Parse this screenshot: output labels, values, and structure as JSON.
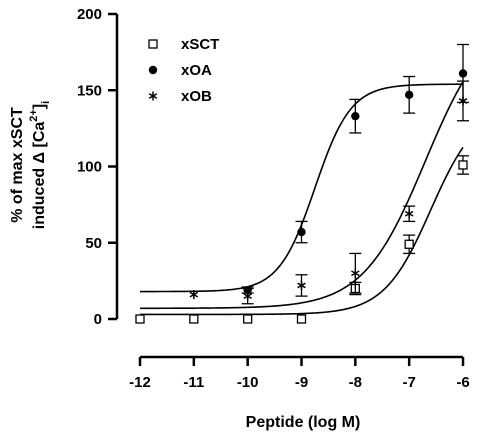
{
  "chart_data": {
    "type": "scatter",
    "title": "",
    "xlabel": "Peptide (log M)",
    "ylabel_line1": "% of max xSCT",
    "ylabel_line2_prefix": "induced Δ  [Ca",
    "ylabel_sup": "2+",
    "ylabel_close": "]",
    "ylabel_sub": "i",
    "xlim": [
      -12,
      -6
    ],
    "ylim": [
      0,
      200
    ],
    "x_ticks": [
      -12,
      -11,
      -10,
      -9,
      -8,
      -7,
      -6
    ],
    "x_tick_labels": [
      "-12",
      "-11",
      "-10",
      "-9",
      "-8",
      "-7",
      "-6"
    ],
    "y_ticks": [
      0,
      50,
      100,
      150,
      200
    ],
    "y_tick_labels": [
      "0",
      "50",
      "100",
      "150",
      "200"
    ],
    "legend_position": "top-left",
    "grid": false,
    "series": [
      {
        "name": "xSCT",
        "marker": "open-square",
        "color": "#000000",
        "points": [
          {
            "x": -12,
            "y": 0,
            "err": 0
          },
          {
            "x": -11,
            "y": 0,
            "err": 0
          },
          {
            "x": -10,
            "y": 0,
            "err": 0
          },
          {
            "x": -9,
            "y": 0,
            "err": 0
          },
          {
            "x": -8,
            "y": 20,
            "err": 4
          },
          {
            "x": -7,
            "y": 49,
            "err": 6
          },
          {
            "x": -6,
            "y": 101,
            "err": 6
          }
        ],
        "fit": {
          "bottom": 3,
          "top": 140,
          "logEC50": -6.6,
          "hill": 1.0
        }
      },
      {
        "name": "xOA",
        "marker": "filled-circle",
        "color": "#000000",
        "points": [
          {
            "x": -10,
            "y": 19,
            "err": 2
          },
          {
            "x": -9,
            "y": 57,
            "err": 7
          },
          {
            "x": -8,
            "y": 133,
            "err": 11
          },
          {
            "x": -7,
            "y": 147,
            "err": 12
          },
          {
            "x": -6,
            "y": 161,
            "err": 19
          }
        ],
        "fit": {
          "bottom": 18,
          "top": 154,
          "logEC50": -8.75,
          "hill": 1.3
        }
      },
      {
        "name": "xOB",
        "marker": "asterisk",
        "color": "#000000",
        "points": [
          {
            "x": -11,
            "y": 16,
            "err": 0
          },
          {
            "x": -10,
            "y": 15,
            "err": 5
          },
          {
            "x": -9,
            "y": 22,
            "err": 7
          },
          {
            "x": -8,
            "y": 30,
            "err": 13
          },
          {
            "x": -7,
            "y": 69,
            "err": 5
          },
          {
            "x": -6,
            "y": 143,
            "err": 13
          }
        ],
        "fit": {
          "bottom": 7,
          "top": 200,
          "logEC50": -6.7,
          "hill": 0.75
        }
      }
    ]
  }
}
